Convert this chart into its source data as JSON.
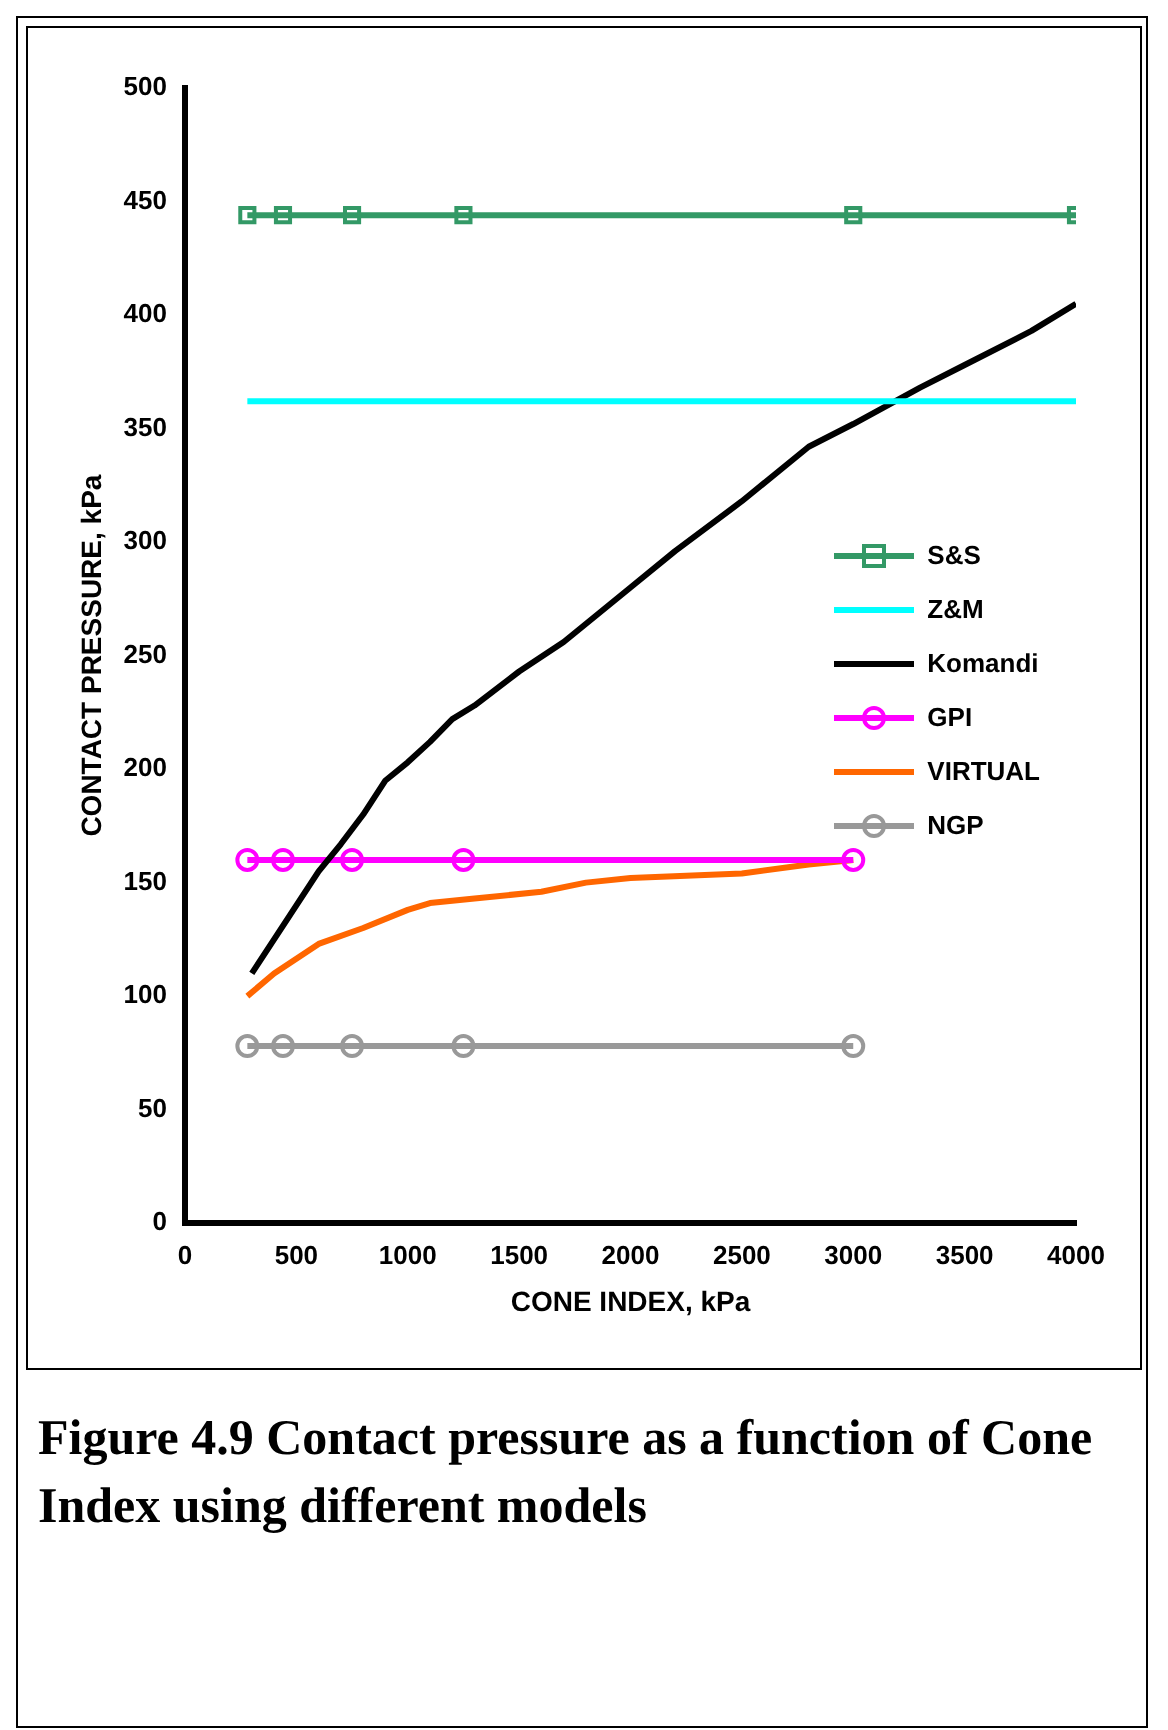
{
  "chart_data": {
    "type": "line",
    "title": "Figure 4.9 Contact pressure as a function of Cone Index using different models",
    "xlabel": "CONE INDEX, kPa",
    "ylabel": "CONTACT PRESSURE, kPa",
    "xlim": [
      0,
      4000
    ],
    "xticks": [
      0,
      500,
      1000,
      1500,
      2000,
      2500,
      3000,
      3500,
      4000
    ],
    "ylim": [
      0,
      500
    ],
    "yticks": [
      0,
      50,
      100,
      150,
      200,
      250,
      300,
      350,
      400,
      450,
      500
    ],
    "grid": false,
    "legend": "right",
    "series": [
      {
        "name": "S&S",
        "color": "#339966",
        "marker": "square",
        "x": [
          280,
          440,
          750,
          1250,
          3000,
          4000
        ],
        "values": [
          444,
          444,
          444,
          444,
          444,
          444
        ]
      },
      {
        "name": "Z&M",
        "color": "#00ffff",
        "marker": "none",
        "x": [
          280,
          4000
        ],
        "values": [
          362,
          362
        ]
      },
      {
        "name": "Komandi",
        "color": "#000000",
        "marker": "none",
        "x": [
          300,
          400,
          500,
          600,
          700,
          800,
          900,
          1000,
          1100,
          1200,
          1300,
          1500,
          1700,
          2000,
          2200,
          2500,
          2800,
          3000,
          3300,
          3500,
          3800,
          4000
        ],
        "values": [
          110,
          125,
          140,
          155,
          167,
          180,
          195,
          203,
          212,
          222,
          228,
          243,
          256,
          280,
          296,
          318,
          342,
          352,
          368,
          378,
          393,
          405
        ]
      },
      {
        "name": "GPI",
        "color": "#ff00ff",
        "marker": "circle",
        "x": [
          280,
          440,
          750,
          1250,
          3000
        ],
        "values": [
          160,
          160,
          160,
          160,
          160
        ]
      },
      {
        "name": "VIRTUAL",
        "color": "#ff6600",
        "marker": "none",
        "x": [
          280,
          400,
          600,
          800,
          1000,
          1100,
          1300,
          1600,
          1800,
          2000,
          2500,
          2800,
          3000
        ],
        "values": [
          100,
          110,
          123,
          130,
          138,
          141,
          143,
          146,
          150,
          152,
          154,
          158,
          160
        ]
      },
      {
        "name": "NGP",
        "color": "#999999",
        "marker": "circle",
        "x": [
          280,
          440,
          750,
          1250,
          3000
        ],
        "values": [
          78,
          78,
          78,
          78,
          78
        ]
      }
    ]
  }
}
